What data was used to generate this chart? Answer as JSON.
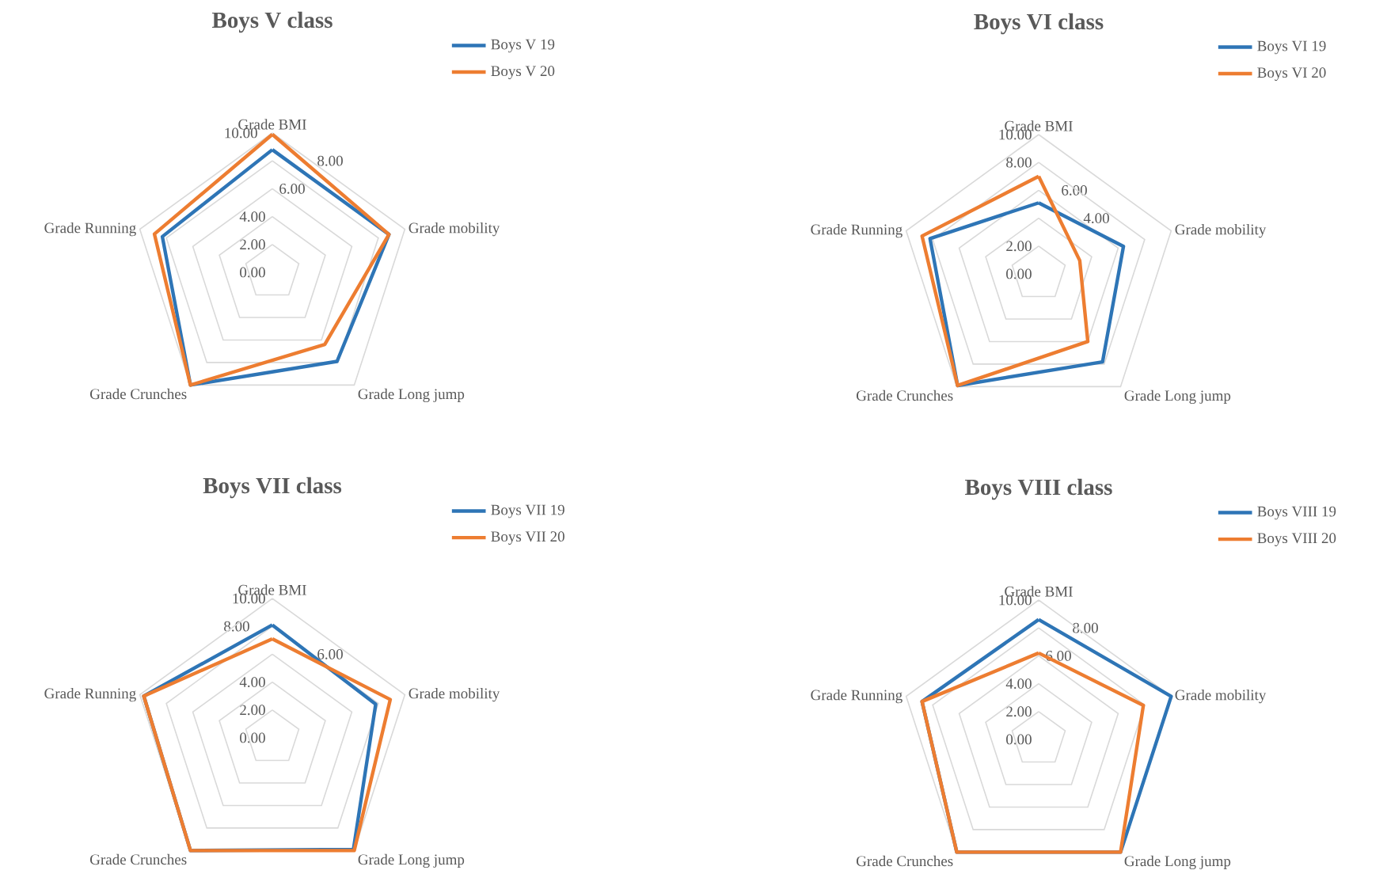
{
  "chart_data": [
    {
      "type": "radar",
      "title": "Boys V class",
      "categories": [
        "Grade BMI",
        "Grade mobility",
        "Grade Long jump",
        "Grade Crunches",
        "Grade Running"
      ],
      "series": [
        {
          "name": "Boys V 19",
          "color": "#2e75b6",
          "values": [
            8.8,
            8.8,
            7.9,
            10,
            8.3
          ]
        },
        {
          "name": "Boys V 20",
          "color": "#ed7d31",
          "values": [
            9.9,
            8.8,
            6.4,
            10,
            8.9
          ]
        }
      ],
      "ylim": [
        0,
        10
      ],
      "yticks": [
        {
          "value": 0,
          "label": "0.00"
        },
        {
          "value": 2,
          "label": "2.00"
        },
        {
          "value": 4,
          "label": "4.00"
        },
        {
          "value": 6,
          "label": "6.00"
        },
        {
          "value": 8,
          "label": "8.00"
        },
        {
          "value": 10,
          "label": "10.00"
        }
      ],
      "grid": true,
      "legend": "top right"
    },
    {
      "type": "radar",
      "title": "Boys VI class",
      "categories": [
        "Grade BMI",
        "Grade mobility",
        "Grade Long jump",
        "Grade Crunches",
        "Grade Running"
      ],
      "series": [
        {
          "name": "Boys VI 19",
          "color": "#2e75b6",
          "values": [
            5.1,
            6.4,
            7.8,
            9.9,
            8.2
          ]
        },
        {
          "name": "Boys VI 20",
          "color": "#ed7d31",
          "values": [
            7.0,
            3.1,
            6.0,
            9.9,
            8.8
          ]
        }
      ],
      "ylim": [
        0,
        10
      ],
      "yticks": [
        {
          "value": 0,
          "label": "0.00"
        },
        {
          "value": 2,
          "label": "2.00"
        },
        {
          "value": 4,
          "label": "4.00"
        },
        {
          "value": 6,
          "label": "6.00"
        },
        {
          "value": 8,
          "label": "8.00"
        },
        {
          "value": 10,
          "label": "10.00"
        }
      ],
      "grid": true,
      "legend": "top right"
    },
    {
      "type": "radar",
      "title": "Boys VII class",
      "categories": [
        "Grade BMI",
        "Grade mobility",
        "Grade Long jump",
        "Grade Crunches",
        "Grade Running"
      ],
      "series": [
        {
          "name": "Boys VII 19",
          "color": "#2e75b6",
          "values": [
            8.1,
            7.8,
            9.9,
            10,
            9.7
          ]
        },
        {
          "name": "Boys VII 20",
          "color": "#ed7d31",
          "values": [
            7.1,
            8.9,
            10,
            10,
            9.7
          ]
        }
      ],
      "ylim": [
        0,
        10
      ],
      "yticks": [
        {
          "value": 0,
          "label": "0.00"
        },
        {
          "value": 2,
          "label": "2.00"
        },
        {
          "value": 4,
          "label": "4.00"
        },
        {
          "value": 6,
          "label": "6.00"
        },
        {
          "value": 8,
          "label": "8.00"
        },
        {
          "value": 10,
          "label": "10.00"
        }
      ],
      "grid": true,
      "legend": "top right"
    },
    {
      "type": "radar",
      "title": "Boys VIII  class",
      "categories": [
        "Grade BMI",
        "Grade mobility",
        "Grade Long jump",
        "Grade Crunches",
        "Grade Running"
      ],
      "series": [
        {
          "name": "Boys VIII 19",
          "color": "#2e75b6",
          "values": [
            8.6,
            10,
            10,
            10,
            8.8
          ]
        },
        {
          "name": "Boys VIII 20",
          "color": "#ed7d31",
          "values": [
            6.2,
            7.9,
            10,
            10,
            8.8
          ]
        }
      ],
      "ylim": [
        0,
        10
      ],
      "yticks": [
        {
          "value": 0,
          "label": "0.00"
        },
        {
          "value": 2,
          "label": "2.00"
        },
        {
          "value": 4,
          "label": "4.00"
        },
        {
          "value": 6,
          "label": "6.00"
        },
        {
          "value": 8,
          "label": "8.00"
        },
        {
          "value": 10,
          "label": "10.00"
        }
      ],
      "grid": true,
      "legend": "top right"
    }
  ]
}
